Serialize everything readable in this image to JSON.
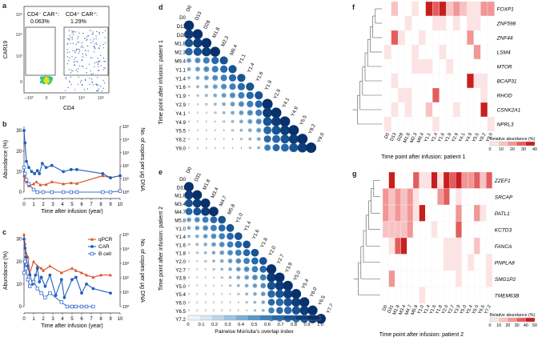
{
  "panel_labels": {
    "a": "a",
    "b": "b",
    "c": "c",
    "d": "d",
    "e": "e",
    "f": "f",
    "g": "g"
  },
  "flow": {
    "x_label": "CD4",
    "y_label": "CAR19",
    "gate1_label": "CD4⁻ CAR⁺:",
    "gate1_value": "0.063%",
    "gate2_label": "CD4⁺ CAR⁺:",
    "gate2_value": "1.29%",
    "x_ticks": [
      "−10³",
      "0",
      "10³",
      "10⁴",
      "10⁵"
    ],
    "y_ticks": [
      "10⁵",
      "10⁴",
      "10³",
      "0"
    ]
  },
  "timeseries": {
    "x_label": "Time after infusion (year)",
    "y_left_label": "Abundance (%)",
    "y_right_label": "No. of copies per μg DNA",
    "x_ticks": [
      "0",
      "1",
      "2",
      "3",
      "4",
      "5",
      "6",
      "7",
      "8",
      "9",
      "10"
    ],
    "y_left_ticks": [
      "0",
      "10",
      "20",
      "30"
    ],
    "y_right_ticks": [
      "10⁰",
      "10¹",
      "10²",
      "10³",
      "10⁴",
      "10⁵"
    ],
    "legend": {
      "qpcr": "qPCR",
      "car": "CAR",
      "bcell": "B cell"
    },
    "colors": {
      "qpcr": "#d94f2b",
      "car": "#1f5fbf",
      "bcell": "#3f6fd0"
    }
  },
  "heatmap_d": {
    "y_axis_label": "Time point after infusion: patient 1",
    "labels": [
      "D0",
      "D13",
      "D28",
      "M1.8",
      "M2.3",
      "M9.4",
      "Y1.1",
      "Y1.4",
      "Y1.6",
      "Y1.9",
      "Y2.9",
      "Y4.1",
      "Y4.9",
      "Y5.5",
      "Y8.2",
      "Y9.0"
    ]
  },
  "heatmap_e": {
    "y_axis_label": "Time point after infusion: patient 2",
    "labels": [
      "D0",
      "D31",
      "M1.8",
      "M3.4",
      "M4.7",
      "M5.8",
      "Y1.0",
      "Y1.4",
      "Y1.6",
      "Y1.8",
      "Y2.0",
      "Y2.7",
      "Y3.9",
      "Y5.0",
      "Y5.4",
      "Y6.0",
      "Y6.5",
      "Y7.2"
    ]
  },
  "colorbar": {
    "label": "Pairwise Morisita's overlap index",
    "ticks": [
      "0",
      "0.1",
      "0.2",
      "0.3",
      "0.4",
      "0.5",
      "0.6",
      "0.7",
      "0.8",
      "0.9",
      "1.0"
    ]
  },
  "heatmap_f": {
    "x_label": "Time point after infusion: patient 1",
    "genes": [
      "FOXP1",
      "ZNF598",
      "ZNF44",
      "LSM4",
      "MTOR",
      "BCAP31",
      "RHOD",
      "CSNK2A1",
      "NPRL3"
    ],
    "cols": [
      "D0",
      "D13",
      "D28",
      "M1.8",
      "M2.3",
      "M9.4",
      "Y1.1",
      "Y1.4",
      "Y1.6",
      "Y1.9",
      "Y2.9",
      "Y4.1",
      "Y4.9",
      "Y5.5",
      "Y8.2",
      "Y9.0"
    ],
    "legend_title": "Relative abundance (%)",
    "legend_ticks": [
      "0",
      "10",
      "20",
      "30",
      "40"
    ]
  },
  "heatmap_g": {
    "x_label": "Time point after infusion: patient 2",
    "genes": [
      "ZZEF1",
      "SRCAP",
      "PATL1",
      "KCTD3",
      "FANCA",
      "PNPLA8",
      "SMG1P2",
      "TMEM63B"
    ],
    "cols": [
      "D0",
      "D31",
      "M1.8",
      "M3.4",
      "M4.7",
      "M5.8",
      "Y1.0",
      "Y1.4",
      "Y1.6",
      "Y1.8",
      "Y2.0",
      "Y2.7",
      "Y3.9",
      "Y5.0",
      "Y5.4",
      "Y6.0",
      "Y6.5",
      "Y7.2"
    ],
    "legend_title": "Relative abundance (%)",
    "legend_ticks": [
      "0",
      "10",
      "20",
      "30",
      "40",
      "50"
    ]
  },
  "chart_data": [
    {
      "type": "line",
      "panel": "b",
      "xlabel": "Time after infusion (year)",
      "ylabel": "Abundance (%)",
      "ylabel_right": "No. of copies per μg DNA",
      "xlim": [
        0,
        10
      ],
      "ylim": [
        0,
        32
      ],
      "series": [
        {
          "name": "qPCR",
          "x": [
            0.0,
            0.1,
            0.25,
            0.5,
            1.0,
            1.3,
            1.7,
            2.3,
            2.9,
            4.1,
            4.9,
            5.5,
            8.2,
            9.0,
            10.0
          ],
          "y": [
            8,
            6,
            5,
            3,
            4,
            5,
            3.5,
            3.7,
            5,
            4,
            4.5,
            4.2,
            8,
            7,
            8
          ]
        },
        {
          "name": "CAR",
          "x": [
            0.0,
            0.1,
            0.25,
            0.5,
            0.8,
            1.1,
            1.4,
            1.6,
            1.9,
            2.3,
            2.9,
            4.1,
            4.9,
            5.5,
            8.2,
            9.0,
            10.0
          ],
          "y": [
            30,
            24,
            15,
            12,
            10,
            9,
            10.5,
            9,
            14,
            12,
            13,
            10,
            11,
            11,
            9,
            7,
            8
          ]
        },
        {
          "name": "B cell",
          "x": [
            0.0,
            0.1,
            0.25,
            0.5,
            1.0,
            1.4,
            2.0,
            2.9,
            4.1,
            4.9,
            5.5,
            8.2,
            9.0,
            10.0
          ],
          "y": [
            12,
            9,
            6,
            4,
            1.2,
            0,
            0,
            0,
            0,
            0,
            0,
            0,
            0,
            0.5
          ]
        }
      ]
    },
    {
      "type": "line",
      "panel": "c",
      "xlabel": "Time after infusion (year)",
      "ylabel": "Abundance (%)",
      "ylabel_right": "No. of copies per μg DNA",
      "xlim": [
        0,
        10
      ],
      "ylim": [
        0,
        32
      ],
      "series": [
        {
          "name": "qPCR",
          "x": [
            0.0,
            0.1,
            0.2,
            0.4,
            0.6,
            1.0,
            1.4,
            1.8,
            2.0,
            2.7,
            3.9,
            5.0,
            5.4,
            6.0,
            6.5,
            7.2,
            8.0,
            9.0
          ],
          "y": [
            32,
            28,
            24,
            22,
            15,
            20,
            18,
            17,
            16,
            18,
            15,
            17,
            16,
            15,
            14,
            13,
            14,
            14
          ]
        },
        {
          "name": "CAR",
          "x": [
            0.0,
            0.1,
            0.2,
            0.4,
            0.6,
            0.9,
            1.2,
            1.4,
            1.6,
            1.8,
            2.2,
            2.7,
            3.3,
            3.9,
            4.2,
            5.0,
            5.4,
            6.0,
            6.5,
            7.2,
            9.0
          ],
          "y": [
            30,
            26,
            22,
            18,
            14,
            10,
            14,
            17,
            11,
            13,
            9,
            14,
            5,
            12,
            4,
            12,
            13,
            6,
            10,
            8,
            6
          ]
        },
        {
          "name": "B cell",
          "x": [
            0.0,
            0.1,
            0.2,
            0.4,
            0.6,
            1.0,
            1.4,
            1.8,
            2.2,
            2.7,
            3.9,
            4.5,
            5.0,
            5.4,
            6.0,
            6.5,
            7.2
          ],
          "y": [
            15,
            20,
            17,
            12,
            9,
            11,
            8,
            6,
            4,
            6,
            2,
            0,
            0,
            0,
            0,
            0,
            0
          ]
        }
      ]
    }
  ]
}
